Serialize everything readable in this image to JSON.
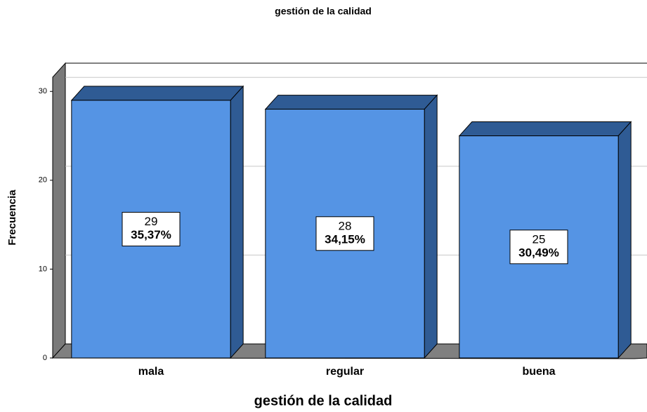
{
  "chart_data": {
    "type": "bar3d",
    "title": "gestión de la calidad",
    "x_label": "gestión de la calidad",
    "y_label": "Frecuencia",
    "categories": [
      "mala",
      "regular",
      "buena"
    ],
    "values": [
      29,
      28,
      25
    ],
    "percentages": [
      35.37,
      34.15,
      30.49
    ],
    "percentage_labels": [
      "35,37%",
      "34,15%",
      "30,49%"
    ],
    "color": "#5594e4",
    "shade_color": "#2f5b94",
    "ylim": [
      0,
      31.6
    ],
    "yticks": [
      0,
      10,
      20,
      30
    ],
    "grid": true
  }
}
